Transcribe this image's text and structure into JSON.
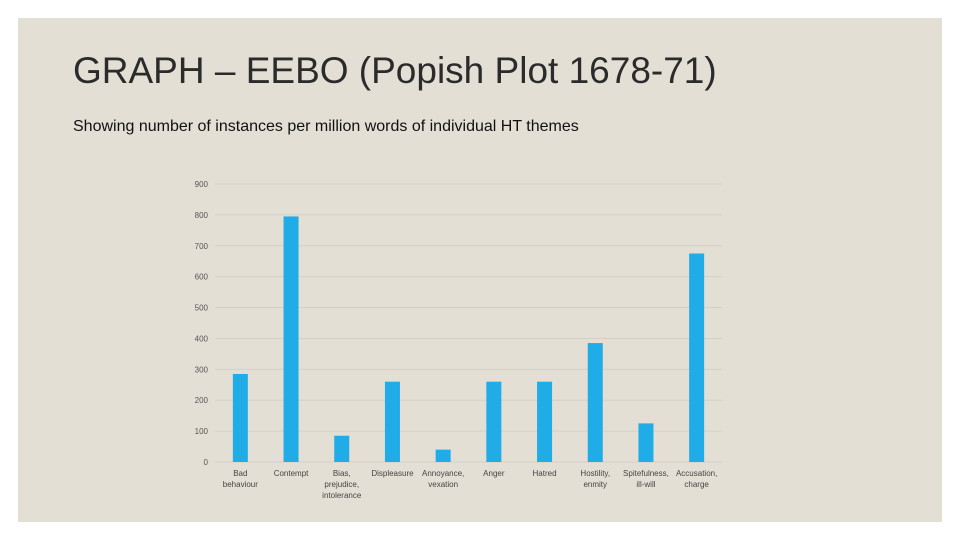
{
  "slide": {
    "title": "GRAPH – EEBO (Popish Plot 1678-71)",
    "subtitle": "Showing number of instances per million words of individual HT themes"
  },
  "chart_data": {
    "type": "bar",
    "categories": [
      [
        "Bad",
        "behaviour"
      ],
      [
        "Contempt"
      ],
      [
        "Bias,",
        "prejudice,",
        "intolerance"
      ],
      [
        "Displeasure"
      ],
      [
        "Annoyance,",
        "vexation"
      ],
      [
        "Anger"
      ],
      [
        "Hatred"
      ],
      [
        "Hostility,",
        "enmity"
      ],
      [
        "Spitefulness,",
        "ill-will"
      ],
      [
        "Accusation,",
        "charge"
      ]
    ],
    "values": [
      285,
      795,
      85,
      260,
      40,
      260,
      260,
      385,
      125,
      675
    ],
    "ylim": [
      0,
      900
    ],
    "yticks": [
      "0",
      "100",
      "200",
      "300",
      "400",
      "500",
      "600",
      "700",
      "800",
      "900"
    ],
    "grid": true,
    "legend": "none",
    "bar_color": "#20ace6",
    "grid_color": "#d4d0c6",
    "title": "",
    "xlabel": "",
    "ylabel": ""
  }
}
